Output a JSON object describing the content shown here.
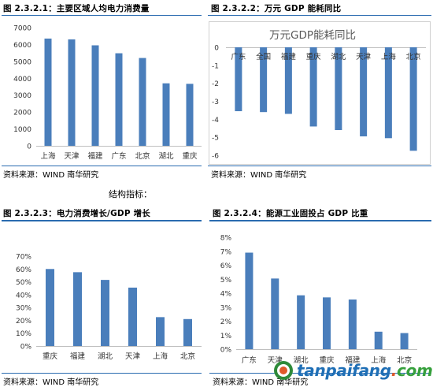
{
  "figures": [
    {
      "title": "图 2.3.2.1：主要区域人均电力消费量",
      "source": "资料来源：WIND  南华研究",
      "chart_data": {
        "type": "bar",
        "title": "",
        "categories": [
          "上海",
          "天津",
          "福建",
          "广东",
          "北京",
          "湖北",
          "重庆"
        ],
        "values": [
          6350,
          6300,
          5950,
          5480,
          5200,
          3700,
          3670
        ],
        "ylim": [
          0,
          7000
        ],
        "yticks": [
          0,
          1000,
          2000,
          3000,
          4000,
          5000,
          6000,
          7000
        ],
        "ytick_labels": [
          "0",
          "1000",
          "2000",
          "3000",
          "4000",
          "5000",
          "6000",
          "7000"
        ],
        "color": "#4a7ebb",
        "grid": false
      }
    },
    {
      "title": "图 2.3.2.2：万元 GDP 能耗同比",
      "source": "资料来源：WIND  南华研究",
      "chart_data": {
        "type": "bar",
        "title": "万元GDP能耗同比",
        "categories": [
          "广东",
          "全国",
          "福建",
          "重庆",
          "湖北",
          "天津",
          "上海",
          "北京"
        ],
        "values": [
          -3.55,
          -3.6,
          -3.7,
          -4.4,
          -4.6,
          -4.95,
          -5.05,
          -5.75
        ],
        "ylim": [
          -6,
          0
        ],
        "yticks": [
          0,
          -1,
          -2,
          -3,
          -4,
          -5,
          -6
        ],
        "ytick_labels": [
          "0",
          "-1",
          "-2",
          "-3",
          "-4",
          "-5",
          "-6"
        ],
        "category_labels_position": "top",
        "color": "#4a7ebb",
        "grid": false
      }
    },
    {
      "title": "图 2.3.2.3：电力消费增长/GDP 增长",
      "source": "资料来源：WIND  南华研究",
      "chart_data": {
        "type": "bar",
        "title": "",
        "categories": [
          "重庆",
          "福建",
          "湖北",
          "天津",
          "上海",
          "北京"
        ],
        "values": [
          0.6,
          0.575,
          0.515,
          0.455,
          0.225,
          0.21
        ],
        "ylim": [
          0,
          0.7
        ],
        "yticks": [
          0,
          0.1,
          0.2,
          0.3,
          0.4,
          0.5,
          0.6,
          0.7
        ],
        "ytick_labels": [
          "0%",
          "10%",
          "20%",
          "30%",
          "40%",
          "50%",
          "60%",
          "70%"
        ],
        "color": "#4a7ebb",
        "grid": false
      }
    },
    {
      "title": "图 2.3.2.4：能源工业固投占 GDP 比重",
      "source": "资料来源：WIND  南华研究",
      "chart_data": {
        "type": "bar",
        "title": "",
        "categories": [
          "广东",
          "天津",
          "湖北",
          "重庆",
          "福建",
          "上海",
          "北京"
        ],
        "values": [
          0.069,
          0.0505,
          0.0385,
          0.037,
          0.0355,
          0.0125,
          0.0115
        ],
        "ylim": [
          0,
          0.08
        ],
        "yticks": [
          0,
          0.01,
          0.02,
          0.03,
          0.04,
          0.05,
          0.06,
          0.07,
          0.08
        ],
        "ytick_labels": [
          "0%",
          "1%",
          "2%",
          "3%",
          "4%",
          "5%",
          "6%",
          "7%",
          "8%"
        ],
        "color": "#4a7ebb",
        "grid": false
      }
    }
  ],
  "section_label": "结构指标：",
  "watermark": {
    "prefix": "tanpaifang",
    "dot": ".",
    "suffix": "com"
  }
}
